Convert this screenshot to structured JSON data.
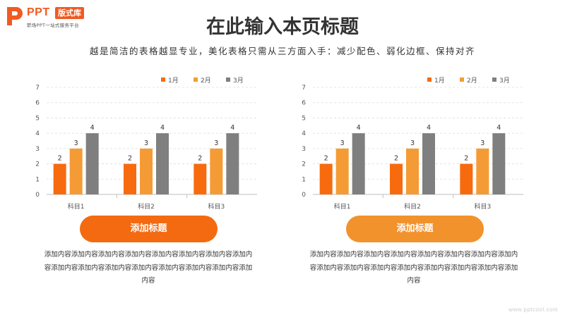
{
  "logo": {
    "brand": "PPT",
    "badge": "版式库",
    "slogan": "职场PPT一站式服务平台"
  },
  "header": {
    "title": "在此输入本页标题",
    "subtitle": "越是简洁的表格越显专业，美化表格只需从三方面入手：减少配色、弱化边框、保持对齐"
  },
  "colors": {
    "s1": "#f76b0e",
    "s2": "#f59b35",
    "s3": "#7f7f7f",
    "pill_left": "#f46a10",
    "pill_right": "#f2922c"
  },
  "chart_data": [
    {
      "type": "bar",
      "categories": [
        "科目1",
        "科目2",
        "科目3"
      ],
      "series": [
        {
          "name": "1月",
          "values": [
            2,
            2,
            2
          ]
        },
        {
          "name": "2月",
          "values": [
            3,
            3,
            3
          ]
        },
        {
          "name": "3月",
          "values": [
            4,
            4,
            4
          ]
        }
      ],
      "ylim": [
        0,
        7
      ],
      "yticks": [
        "0",
        "1",
        "2",
        "3",
        "4",
        "5",
        "6",
        "7"
      ],
      "grid": true,
      "legend": "top-right",
      "data_labels": true
    },
    {
      "type": "bar",
      "categories": [
        "科目1",
        "科目2",
        "科目3"
      ],
      "series": [
        {
          "name": "1月",
          "values": [
            2,
            2,
            2
          ]
        },
        {
          "name": "2月",
          "values": [
            3,
            3,
            3
          ]
        },
        {
          "name": "3月",
          "values": [
            4,
            4,
            4
          ]
        }
      ],
      "ylim": [
        0,
        7
      ],
      "yticks": [
        "0",
        "1",
        "2",
        "3",
        "4",
        "5",
        "6",
        "7"
      ],
      "grid": true,
      "legend": "top-right",
      "data_labels": true
    }
  ],
  "left": {
    "button_label": "添加标题",
    "desc": "添加内容添加内容添加内容添加内容添加内容添加内容添加内容添加内容添加内容添加内容添加内容添加内容添加内容添加内容添加内容添加内容"
  },
  "right": {
    "button_label": "添加标题",
    "desc": "添加内容添加内容添加内容添加内容添加内容添加内容添加内容添加内容添加内容添加内容添加内容添加内容添加内容添加内容添加内容添加内容"
  },
  "watermark": "www.pptcool.com"
}
